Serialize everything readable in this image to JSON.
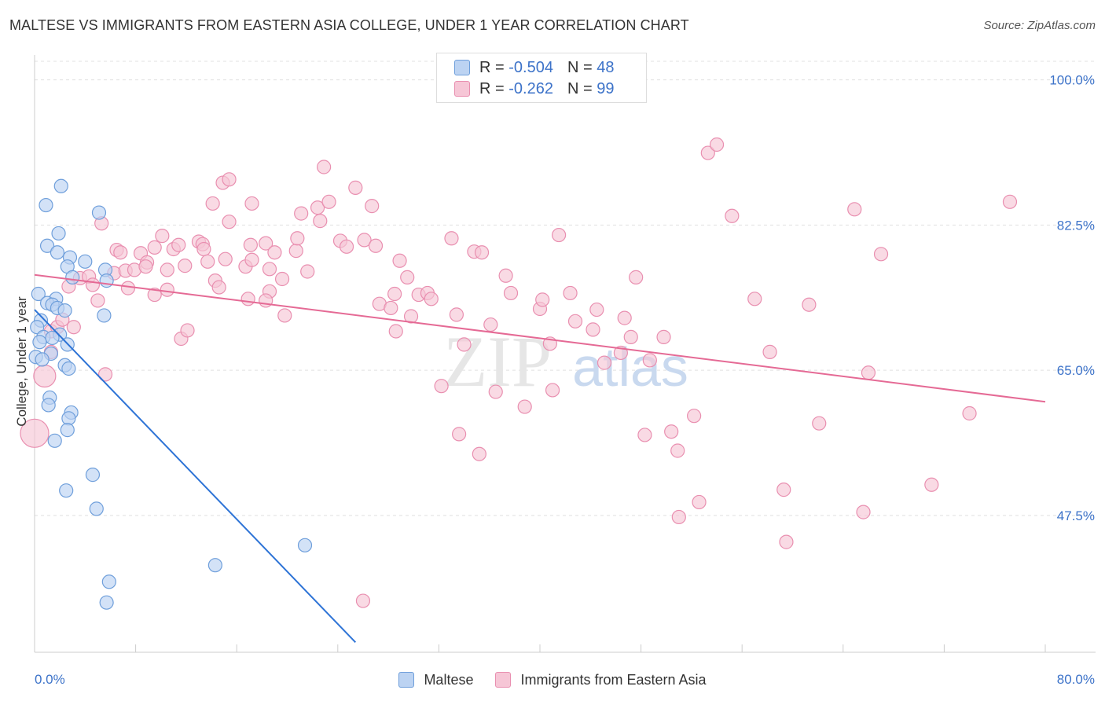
{
  "title": "MALTESE VS IMMIGRANTS FROM EASTERN ASIA COLLEGE, UNDER 1 YEAR CORRELATION CHART",
  "source": "Source: ZipAtlas.com",
  "watermark": {
    "zip": "ZIP",
    "atlas": "atlas"
  },
  "legend_top": {
    "r_label": "R =",
    "n_label": "N =",
    "rows": [
      {
        "r": "-0.504",
        "n": "48"
      },
      {
        "r": "-0.262",
        "n": "99"
      }
    ]
  },
  "colors": {
    "blue_fill": "#bcd3f2",
    "blue_stroke": "#6f9fdb",
    "blue_line": "#2d73d6",
    "pink_fill": "#f6c6d6",
    "pink_stroke": "#e98fb0",
    "pink_line": "#e56a95",
    "axis_text": "#3d73c9",
    "grid": "#e0e0e0"
  },
  "chart_data": {
    "type": "scatter",
    "title": "MALTESE VS IMMIGRANTS FROM EASTERN ASIA COLLEGE, UNDER 1 YEAR CORRELATION CHART",
    "xlabel": "",
    "ylabel": "College, Under 1 year",
    "xlim": [
      0,
      80
    ],
    "ylim": [
      31,
      103
    ],
    "x_tick_labels": [
      {
        "value": 0,
        "label": "0.0%"
      },
      {
        "value": 80,
        "label": "80.0%"
      }
    ],
    "y_ticks": [
      {
        "value": 100.0,
        "label": "100.0%"
      },
      {
        "value": 82.5,
        "label": "82.5%"
      },
      {
        "value": 65.0,
        "label": "65.0%"
      },
      {
        "value": 47.5,
        "label": "47.5%"
      }
    ],
    "series": [
      {
        "name": "Maltese",
        "color": "blue",
        "trend": {
          "x": [
            0.0,
            25.4
          ],
          "y": [
            72.3,
            32.2
          ]
        },
        "points": [
          [
            2.1,
            87.2
          ],
          [
            0.9,
            84.9
          ],
          [
            5.1,
            84.0
          ],
          [
            1.9,
            81.5
          ],
          [
            1.0,
            80.0
          ],
          [
            1.8,
            79.2
          ],
          [
            2.8,
            78.6
          ],
          [
            4.0,
            78.1
          ],
          [
            2.6,
            77.5
          ],
          [
            5.6,
            77.1
          ],
          [
            3.0,
            76.2
          ],
          [
            5.7,
            75.8
          ],
          [
            0.3,
            74.2
          ],
          [
            1.7,
            73.6
          ],
          [
            1.0,
            73.1
          ],
          [
            1.4,
            72.9
          ],
          [
            1.8,
            72.5
          ],
          [
            2.4,
            72.2
          ],
          [
            5.5,
            71.6
          ],
          [
            0.5,
            71.0
          ],
          [
            0.2,
            70.2
          ],
          [
            2.0,
            69.3
          ],
          [
            0.7,
            69.0
          ],
          [
            1.4,
            68.9
          ],
          [
            0.4,
            68.4
          ],
          [
            2.6,
            68.1
          ],
          [
            1.3,
            67.0
          ],
          [
            0.1,
            66.6
          ],
          [
            0.6,
            66.3
          ],
          [
            2.4,
            65.6
          ],
          [
            2.7,
            65.2
          ],
          [
            1.2,
            61.7
          ],
          [
            1.1,
            60.8
          ],
          [
            2.9,
            59.9
          ],
          [
            2.7,
            59.2
          ],
          [
            2.6,
            57.8
          ],
          [
            1.6,
            56.5
          ],
          [
            4.6,
            52.4
          ],
          [
            2.5,
            50.5
          ],
          [
            4.9,
            48.3
          ],
          [
            21.4,
            43.9
          ],
          [
            14.3,
            41.5
          ],
          [
            5.9,
            39.5
          ],
          [
            5.7,
            37.0
          ]
        ]
      },
      {
        "name": "Immigrants from Eastern Asia",
        "color": "pink",
        "trend": {
          "x": [
            0.0,
            80.0
          ],
          "y": [
            76.5,
            61.2
          ]
        },
        "points": [
          [
            0.0,
            57.4
          ],
          [
            0.8,
            64.3
          ],
          [
            5.6,
            64.5
          ],
          [
            1.3,
            67.2
          ],
          [
            1.3,
            69.7
          ],
          [
            1.8,
            70.2
          ],
          [
            2.2,
            71.1
          ],
          [
            3.1,
            70.2
          ],
          [
            2.7,
            75.1
          ],
          [
            3.6,
            76.1
          ],
          [
            4.3,
            76.3
          ],
          [
            5.0,
            73.4
          ],
          [
            4.6,
            75.3
          ],
          [
            5.3,
            82.7
          ],
          [
            6.3,
            76.7
          ],
          [
            6.5,
            79.5
          ],
          [
            6.8,
            79.2
          ],
          [
            7.2,
            77.0
          ],
          [
            7.4,
            74.9
          ],
          [
            7.9,
            77.1
          ],
          [
            8.4,
            79.1
          ],
          [
            8.9,
            78.0
          ],
          [
            9.5,
            79.8
          ],
          [
            8.8,
            77.5
          ],
          [
            9.5,
            74.1
          ],
          [
            10.1,
            81.2
          ],
          [
            10.5,
            77.1
          ],
          [
            10.5,
            74.7
          ],
          [
            11.0,
            79.6
          ],
          [
            11.4,
            80.1
          ],
          [
            11.9,
            77.6
          ],
          [
            11.6,
            68.8
          ],
          [
            12.1,
            69.8
          ],
          [
            13.0,
            80.5
          ],
          [
            13.3,
            80.2
          ],
          [
            13.4,
            79.6
          ],
          [
            13.7,
            78.1
          ],
          [
            14.3,
            75.8
          ],
          [
            14.6,
            75.0
          ],
          [
            15.1,
            78.4
          ],
          [
            15.4,
            82.9
          ],
          [
            14.1,
            85.1
          ],
          [
            14.9,
            87.6
          ],
          [
            15.4,
            88.0
          ],
          [
            16.7,
            77.5
          ],
          [
            17.2,
            78.3
          ],
          [
            17.1,
            80.1
          ],
          [
            16.9,
            73.6
          ],
          [
            17.2,
            85.1
          ],
          [
            18.3,
            80.3
          ],
          [
            18.6,
            77.2
          ],
          [
            18.6,
            74.5
          ],
          [
            19.6,
            76.0
          ],
          [
            19.0,
            79.2
          ],
          [
            18.3,
            73.4
          ],
          [
            19.8,
            71.6
          ],
          [
            20.7,
            79.4
          ],
          [
            21.6,
            76.9
          ],
          [
            20.8,
            80.9
          ],
          [
            21.1,
            83.9
          ],
          [
            22.4,
            84.6
          ],
          [
            22.6,
            83.0
          ],
          [
            22.9,
            89.5
          ],
          [
            23.3,
            85.3
          ],
          [
            24.2,
            80.6
          ],
          [
            24.7,
            79.9
          ],
          [
            25.4,
            87.0
          ],
          [
            26.1,
            80.7
          ],
          [
            26.7,
            84.8
          ],
          [
            27.0,
            80.0
          ],
          [
            27.3,
            73.0
          ],
          [
            28.2,
            72.5
          ],
          [
            28.5,
            74.2
          ],
          [
            28.6,
            69.7
          ],
          [
            28.9,
            78.2
          ],
          [
            29.5,
            76.2
          ],
          [
            29.8,
            71.5
          ],
          [
            30.4,
            74.1
          ],
          [
            31.1,
            74.3
          ],
          [
            31.4,
            73.6
          ],
          [
            32.2,
            63.1
          ],
          [
            33.0,
            80.9
          ],
          [
            33.4,
            71.7
          ],
          [
            33.6,
            57.3
          ],
          [
            34.0,
            68.1
          ],
          [
            34.8,
            79.3
          ],
          [
            35.2,
            54.9
          ],
          [
            35.4,
            79.2
          ],
          [
            36.1,
            70.5
          ],
          [
            36.5,
            62.4
          ],
          [
            37.3,
            76.4
          ],
          [
            37.7,
            74.3
          ],
          [
            38.8,
            60.6
          ],
          [
            40.0,
            72.4
          ],
          [
            40.2,
            73.5
          ],
          [
            41.0,
            62.6
          ],
          [
            41.5,
            81.3
          ],
          [
            42.4,
            74.3
          ],
          [
            42.8,
            70.9
          ],
          [
            44.2,
            69.9
          ],
          [
            44.5,
            72.3
          ],
          [
            45.1,
            65.9
          ],
          [
            46.4,
            67.1
          ],
          [
            46.7,
            71.3
          ],
          [
            47.2,
            69.0
          ],
          [
            47.6,
            76.2
          ],
          [
            48.3,
            57.2
          ],
          [
            48.7,
            66.2
          ],
          [
            49.8,
            69.0
          ],
          [
            50.4,
            57.6
          ],
          [
            50.9,
            55.3
          ],
          [
            51.0,
            47.3
          ],
          [
            52.2,
            59.5
          ],
          [
            52.6,
            49.1
          ],
          [
            53.3,
            91.2
          ],
          [
            54.0,
            92.2
          ],
          [
            55.2,
            83.6
          ],
          [
            57.0,
            73.6
          ],
          [
            58.2,
            67.2
          ],
          [
            59.3,
            50.6
          ],
          [
            59.5,
            44.3
          ],
          [
            61.3,
            72.9
          ],
          [
            62.1,
            58.6
          ],
          [
            65.6,
            47.9
          ],
          [
            67.0,
            79.0
          ],
          [
            77.2,
            85.3
          ],
          [
            64.9,
            84.4
          ],
          [
            66.0,
            64.7
          ],
          [
            74.0,
            59.8
          ],
          [
            71.0,
            51.2
          ],
          [
            26.0,
            37.2
          ],
          [
            40.8,
            68.2
          ]
        ]
      }
    ]
  },
  "legend_bottom": {
    "items": [
      "Maltese",
      "Immigrants from Eastern Asia"
    ]
  }
}
